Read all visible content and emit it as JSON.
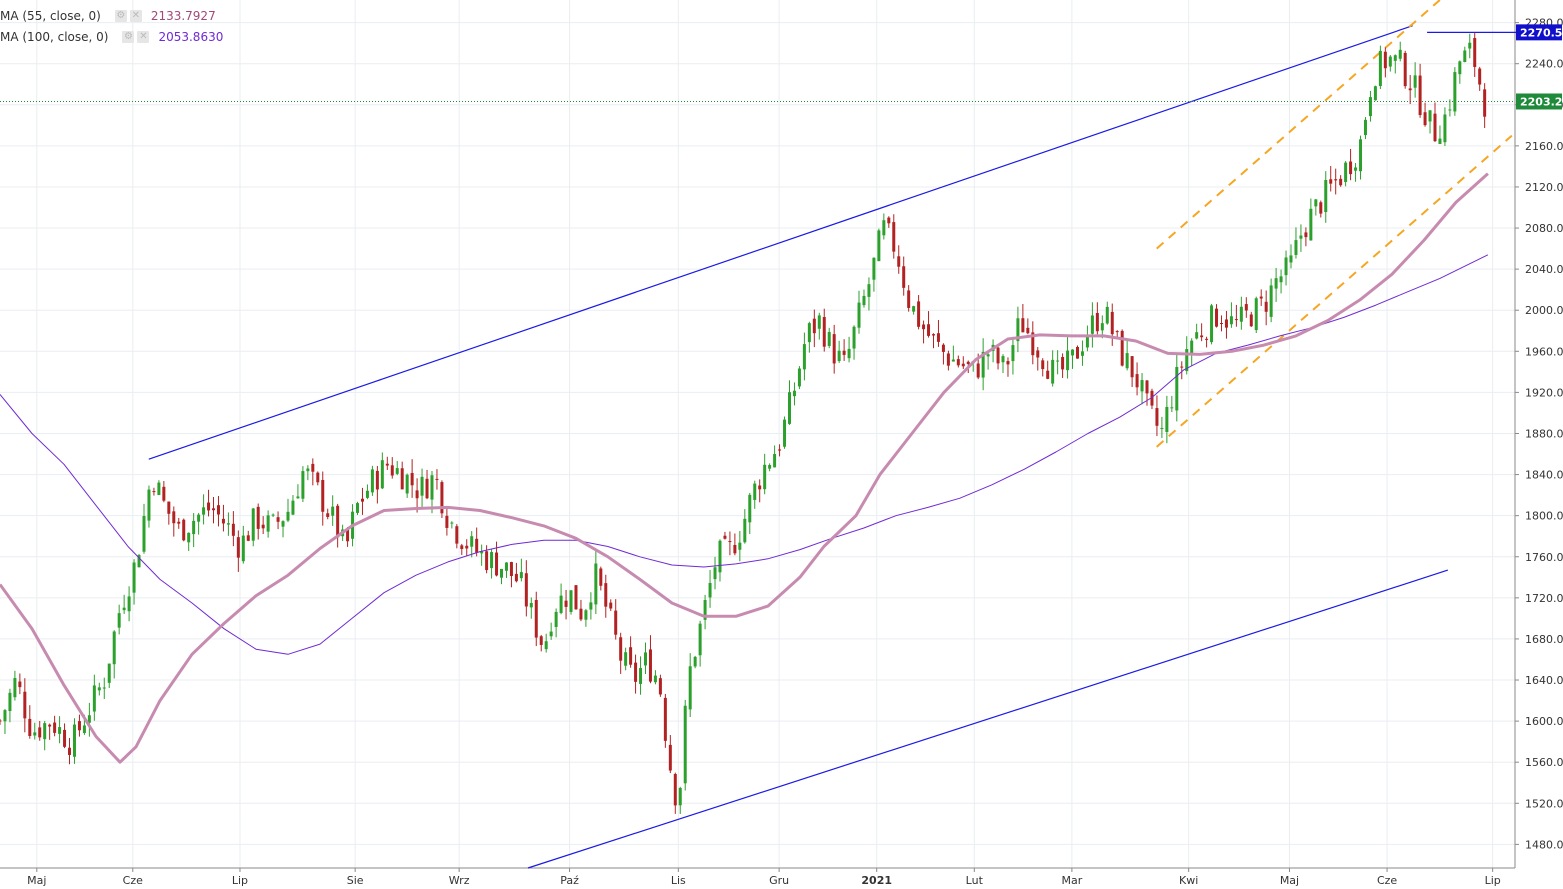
{
  "legend": [
    {
      "name": "MA (55, close, 0)",
      "value": "2133.7927",
      "color": "#a2497a"
    },
    {
      "name": "MA (100, close, 0)",
      "value": "2053.8630",
      "color": "#6f2bd4"
    }
  ],
  "price_badges": [
    {
      "label": "2270.5",
      "value": 2270.5,
      "color": "#1111cc"
    },
    {
      "label": "2203.2",
      "value": 2203.2,
      "color": "#1f8a3a"
    }
  ],
  "chart_data": {
    "type": "candlestick",
    "y_ticks": [
      "1480.0",
      "1520.0",
      "1560.0",
      "1600.0",
      "1640.0",
      "1680.0",
      "1720.0",
      "1760.0",
      "1800.0",
      "1840.0",
      "1880.0",
      "1920.0",
      "1960.0",
      "2000.0",
      "2040.0",
      "2080.0",
      "2120.0",
      "2160.0",
      "2200.0",
      "2240.0",
      "2280.0"
    ],
    "y_tick_values": [
      1480,
      1520,
      1560,
      1600,
      1640,
      1680,
      1720,
      1760,
      1800,
      1840,
      1880,
      1920,
      1960,
      2000,
      2040,
      2080,
      2120,
      2160,
      2200,
      2240,
      2280
    ],
    "ylim": [
      1457,
      2302
    ],
    "x_months": [
      {
        "label": "Maj",
        "t": 0.023,
        "bold": false
      },
      {
        "label": "Cze",
        "t": 0.083,
        "bold": false
      },
      {
        "label": "Lip",
        "t": 0.15,
        "bold": false
      },
      {
        "label": "Sie",
        "t": 0.222,
        "bold": false
      },
      {
        "label": "Wrz",
        "t": 0.287,
        "bold": false
      },
      {
        "label": "Paź",
        "t": 0.356,
        "bold": false
      },
      {
        "label": "Lis",
        "t": 0.424,
        "bold": false
      },
      {
        "label": "Gru",
        "t": 0.487,
        "bold": false
      },
      {
        "label": "2021",
        "t": 0.548,
        "bold": true
      },
      {
        "label": "Lut",
        "t": 0.609,
        "bold": false
      },
      {
        "label": "Mar",
        "t": 0.67,
        "bold": false
      },
      {
        "label": "Kwi",
        "t": 0.743,
        "bold": false
      },
      {
        "label": "Maj",
        "t": 0.806,
        "bold": false
      },
      {
        "label": "Cze",
        "t": 0.867,
        "bold": false
      },
      {
        "label": "Lip",
        "t": 0.933,
        "bold": false
      }
    ],
    "close_path": [
      [
        0.0,
        1600
      ],
      [
        0.01,
        1640
      ],
      [
        0.02,
        1590
      ],
      [
        0.032,
        1600
      ],
      [
        0.045,
        1578
      ],
      [
        0.055,
        1610
      ],
      [
        0.065,
        1640
      ],
      [
        0.075,
        1710
      ],
      [
        0.085,
        1755
      ],
      [
        0.095,
        1842
      ],
      [
        0.102,
        1812
      ],
      [
        0.112,
        1785
      ],
      [
        0.122,
        1798
      ],
      [
        0.132,
        1808
      ],
      [
        0.142,
        1790
      ],
      [
        0.15,
        1770
      ],
      [
        0.16,
        1798
      ],
      [
        0.17,
        1788
      ],
      [
        0.18,
        1805
      ],
      [
        0.19,
        1845
      ],
      [
        0.2,
        1820
      ],
      [
        0.21,
        1790
      ],
      [
        0.216,
        1765
      ],
      [
        0.222,
        1805
      ],
      [
        0.232,
        1832
      ],
      [
        0.242,
        1850
      ],
      [
        0.252,
        1840
      ],
      [
        0.262,
        1825
      ],
      [
        0.272,
        1838
      ],
      [
        0.28,
        1798
      ],
      [
        0.287,
        1782
      ],
      [
        0.295,
        1768
      ],
      [
        0.305,
        1758
      ],
      [
        0.315,
        1750
      ],
      [
        0.325,
        1735
      ],
      [
        0.333,
        1700
      ],
      [
        0.34,
        1672
      ],
      [
        0.346,
        1712
      ],
      [
        0.356,
        1725
      ],
      [
        0.364,
        1705
      ],
      [
        0.372,
        1742
      ],
      [
        0.38,
        1705
      ],
      [
        0.388,
        1662
      ],
      [
        0.396,
        1640
      ],
      [
        0.404,
        1658
      ],
      [
        0.412,
        1640
      ],
      [
        0.418,
        1565
      ],
      [
        0.424,
        1515
      ],
      [
        0.43,
        1640
      ],
      [
        0.436,
        1680
      ],
      [
        0.442,
        1720
      ],
      [
        0.448,
        1760
      ],
      [
        0.456,
        1765
      ],
      [
        0.464,
        1790
      ],
      [
        0.47,
        1820
      ],
      [
        0.478,
        1848
      ],
      [
        0.487,
        1870
      ],
      [
        0.496,
        1920
      ],
      [
        0.504,
        1975
      ],
      [
        0.512,
        1990
      ],
      [
        0.52,
        1962
      ],
      [
        0.528,
        1945
      ],
      [
        0.536,
        1990
      ],
      [
        0.544,
        2030
      ],
      [
        0.552,
        2080
      ],
      [
        0.56,
        2060
      ],
      [
        0.568,
        2010
      ],
      [
        0.576,
        1985
      ],
      [
        0.584,
        1968
      ],
      [
        0.592,
        1955
      ],
      [
        0.6,
        1948
      ],
      [
        0.609,
        1940
      ],
      [
        0.618,
        1960
      ],
      [
        0.628,
        1942
      ],
      [
        0.638,
        1990
      ],
      [
        0.648,
        1965
      ],
      [
        0.66,
        1935
      ],
      [
        0.67,
        1950
      ],
      [
        0.68,
        1980
      ],
      [
        0.69,
        2000
      ],
      [
        0.7,
        1960
      ],
      [
        0.71,
        1935
      ],
      [
        0.718,
        1900
      ],
      [
        0.726,
        1880
      ],
      [
        0.734,
        1925
      ],
      [
        0.743,
        1968
      ],
      [
        0.752,
        1982
      ],
      [
        0.762,
        1998
      ],
      [
        0.772,
        1985
      ],
      [
        0.78,
        1995
      ],
      [
        0.79,
        2005
      ],
      [
        0.798,
        2030
      ],
      [
        0.806,
        2040
      ],
      [
        0.814,
        2078
      ],
      [
        0.822,
        2098
      ],
      [
        0.83,
        2115
      ],
      [
        0.84,
        2135
      ],
      [
        0.85,
        2160
      ],
      [
        0.858,
        2230
      ],
      [
        0.867,
        2245
      ],
      [
        0.875,
        2240
      ],
      [
        0.882,
        2222
      ],
      [
        0.889,
        2200
      ],
      [
        0.896,
        2172
      ],
      [
        0.904,
        2190
      ],
      [
        0.912,
        2242
      ],
      [
        0.92,
        2252
      ],
      [
        0.928,
        2203
      ]
    ],
    "ma55": [
      [
        0.0,
        1733
      ],
      [
        0.02,
        1690
      ],
      [
        0.04,
        1635
      ],
      [
        0.06,
        1585
      ],
      [
        0.075,
        1560
      ],
      [
        0.085,
        1575
      ],
      [
        0.1,
        1620
      ],
      [
        0.12,
        1665
      ],
      [
        0.14,
        1695
      ],
      [
        0.16,
        1722
      ],
      [
        0.18,
        1742
      ],
      [
        0.2,
        1768
      ],
      [
        0.22,
        1790
      ],
      [
        0.24,
        1805
      ],
      [
        0.26,
        1807
      ],
      [
        0.28,
        1808
      ],
      [
        0.3,
        1805
      ],
      [
        0.32,
        1798
      ],
      [
        0.34,
        1790
      ],
      [
        0.36,
        1778
      ],
      [
        0.38,
        1760
      ],
      [
        0.4,
        1738
      ],
      [
        0.42,
        1715
      ],
      [
        0.44,
        1702
      ],
      [
        0.46,
        1702
      ],
      [
        0.48,
        1712
      ],
      [
        0.5,
        1740
      ],
      [
        0.515,
        1770
      ],
      [
        0.535,
        1800
      ],
      [
        0.55,
        1840
      ],
      [
        0.57,
        1880
      ],
      [
        0.59,
        1920
      ],
      [
        0.61,
        1952
      ],
      [
        0.63,
        1972
      ],
      [
        0.65,
        1976
      ],
      [
        0.67,
        1975
      ],
      [
        0.69,
        1975
      ],
      [
        0.71,
        1970
      ],
      [
        0.73,
        1958
      ],
      [
        0.75,
        1957
      ],
      [
        0.77,
        1960
      ],
      [
        0.79,
        1966
      ],
      [
        0.81,
        1975
      ],
      [
        0.83,
        1990
      ],
      [
        0.85,
        2010
      ],
      [
        0.87,
        2035
      ],
      [
        0.89,
        2068
      ],
      [
        0.91,
        2105
      ],
      [
        0.93,
        2133
      ]
    ],
    "ma100": [
      [
        0.0,
        1918
      ],
      [
        0.02,
        1880
      ],
      [
        0.04,
        1850
      ],
      [
        0.06,
        1810
      ],
      [
        0.08,
        1770
      ],
      [
        0.1,
        1738
      ],
      [
        0.12,
        1715
      ],
      [
        0.14,
        1690
      ],
      [
        0.16,
        1670
      ],
      [
        0.18,
        1665
      ],
      [
        0.2,
        1675
      ],
      [
        0.22,
        1700
      ],
      [
        0.24,
        1725
      ],
      [
        0.26,
        1742
      ],
      [
        0.28,
        1755
      ],
      [
        0.3,
        1765
      ],
      [
        0.32,
        1772
      ],
      [
        0.34,
        1776
      ],
      [
        0.36,
        1776
      ],
      [
        0.38,
        1770
      ],
      [
        0.4,
        1760
      ],
      [
        0.42,
        1752
      ],
      [
        0.44,
        1750
      ],
      [
        0.46,
        1753
      ],
      [
        0.48,
        1758
      ],
      [
        0.5,
        1767
      ],
      [
        0.52,
        1778
      ],
      [
        0.54,
        1788
      ],
      [
        0.56,
        1800
      ],
      [
        0.58,
        1808
      ],
      [
        0.6,
        1817
      ],
      [
        0.62,
        1830
      ],
      [
        0.64,
        1845
      ],
      [
        0.66,
        1862
      ],
      [
        0.68,
        1880
      ],
      [
        0.7,
        1896
      ],
      [
        0.72,
        1915
      ],
      [
        0.74,
        1942
      ],
      [
        0.76,
        1958
      ],
      [
        0.78,
        1966
      ],
      [
        0.8,
        1975
      ],
      [
        0.82,
        1983
      ],
      [
        0.84,
        1993
      ],
      [
        0.86,
        2005
      ],
      [
        0.88,
        2018
      ],
      [
        0.9,
        2031
      ],
      [
        0.93,
        2054
      ]
    ],
    "lines": [
      {
        "kind": "solid",
        "color": "#1a1ae6",
        "points": [
          [
            0.093,
            1855
          ],
          [
            0.883,
            2277
          ]
        ]
      },
      {
        "kind": "solid",
        "color": "#1a1ae6",
        "points": [
          [
            0.33,
            1457
          ],
          [
            0.905,
            1747
          ]
        ]
      },
      {
        "kind": "dashed",
        "color": "#f5a623",
        "points": [
          [
            0.723,
            2060
          ],
          [
            0.9,
            2302
          ]
        ]
      },
      {
        "kind": "dashed",
        "color": "#f5a623",
        "points": [
          [
            0.723,
            1867
          ],
          [
            0.945,
            2170
          ]
        ]
      },
      {
        "kind": "solid",
        "color": "#1a1ae6",
        "points": [
          [
            0.892,
            2270.5
          ],
          [
            0.97,
            2270.5
          ]
        ]
      }
    ],
    "last_price": 2203.2,
    "last_price_line_color": "#1f8a3a"
  }
}
